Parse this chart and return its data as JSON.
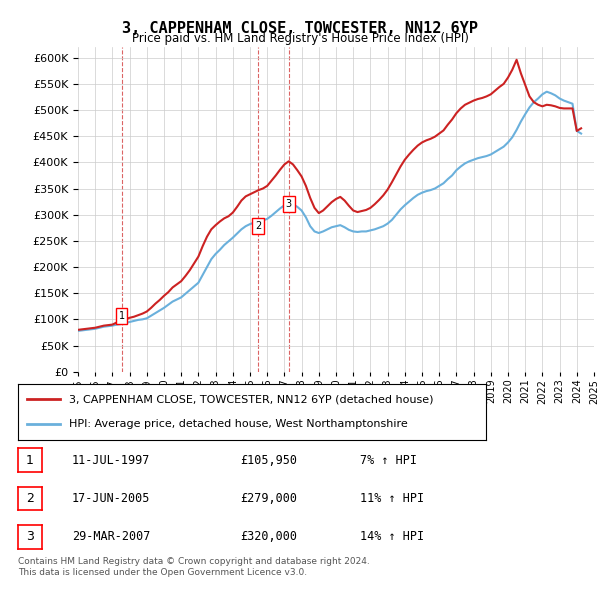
{
  "title": "3, CAPPENHAM CLOSE, TOWCESTER, NN12 6YP",
  "subtitle": "Price paid vs. HM Land Registry's House Price Index (HPI)",
  "ylim": [
    0,
    620000
  ],
  "yticks": [
    0,
    50000,
    100000,
    150000,
    200000,
    250000,
    300000,
    350000,
    400000,
    450000,
    500000,
    550000,
    600000
  ],
  "legend_line1": "3, CAPPENHAM CLOSE, TOWCESTER, NN12 6YP (detached house)",
  "legend_line2": "HPI: Average price, detached house, West Northamptonshire",
  "transactions": [
    {
      "num": 1,
      "date": "11-JUL-1997",
      "price": 105950,
      "pct": "7%",
      "x": 1997.53
    },
    {
      "num": 2,
      "date": "17-JUN-2005",
      "price": 279000,
      "pct": "11%",
      "x": 2005.46
    },
    {
      "num": 3,
      "date": "29-MAR-2007",
      "price": 320000,
      "pct": "14%",
      "x": 2007.24
    }
  ],
  "footnote1": "Contains HM Land Registry data © Crown copyright and database right 2024.",
  "footnote2": "This data is licensed under the Open Government Licence v3.0.",
  "hpi_color": "#6ab0dc",
  "price_color": "#cc2222",
  "vline_color": "#cc2222",
  "background_color": "#ffffff",
  "grid_color": "#cccccc",
  "hpi_data_x": [
    1995,
    1995.25,
    1995.5,
    1995.75,
    1996,
    1996.25,
    1996.5,
    1996.75,
    1997,
    1997.25,
    1997.5,
    1997.75,
    1998,
    1998.25,
    1998.5,
    1998.75,
    1999,
    1999.25,
    1999.5,
    1999.75,
    2000,
    2000.25,
    2000.5,
    2000.75,
    2001,
    2001.25,
    2001.5,
    2001.75,
    2002,
    2002.25,
    2002.5,
    2002.75,
    2003,
    2003.25,
    2003.5,
    2003.75,
    2004,
    2004.25,
    2004.5,
    2004.75,
    2005,
    2005.25,
    2005.5,
    2005.75,
    2006,
    2006.25,
    2006.5,
    2006.75,
    2007,
    2007.25,
    2007.5,
    2007.75,
    2008,
    2008.25,
    2008.5,
    2008.75,
    2009,
    2009.25,
    2009.5,
    2009.75,
    2010,
    2010.25,
    2010.5,
    2010.75,
    2011,
    2011.25,
    2011.5,
    2011.75,
    2012,
    2012.25,
    2012.5,
    2012.75,
    2013,
    2013.25,
    2013.5,
    2013.75,
    2014,
    2014.25,
    2014.5,
    2014.75,
    2015,
    2015.25,
    2015.5,
    2015.75,
    2016,
    2016.25,
    2016.5,
    2016.75,
    2017,
    2017.25,
    2017.5,
    2017.75,
    2018,
    2018.25,
    2018.5,
    2018.75,
    2019,
    2019.25,
    2019.5,
    2019.75,
    2020,
    2020.25,
    2020.5,
    2020.75,
    2021,
    2021.25,
    2021.5,
    2021.75,
    2022,
    2022.25,
    2022.5,
    2022.75,
    2023,
    2023.25,
    2023.5,
    2023.75,
    2024,
    2024.25
  ],
  "hpi_data_y": [
    78000,
    79000,
    80000,
    81000,
    82000,
    84000,
    86000,
    87000,
    88000,
    90000,
    91000,
    93000,
    95000,
    97000,
    99000,
    100000,
    102000,
    107000,
    112000,
    117000,
    122000,
    128000,
    134000,
    138000,
    142000,
    149000,
    156000,
    163000,
    170000,
    185000,
    200000,
    215000,
    225000,
    233000,
    242000,
    249000,
    256000,
    264000,
    272000,
    278000,
    282000,
    285000,
    287000,
    289000,
    292000,
    298000,
    305000,
    312000,
    318000,
    322000,
    320000,
    315000,
    308000,
    295000,
    278000,
    268000,
    265000,
    268000,
    272000,
    276000,
    278000,
    280000,
    276000,
    271000,
    268000,
    267000,
    268000,
    268000,
    270000,
    272000,
    275000,
    278000,
    283000,
    290000,
    300000,
    310000,
    318000,
    325000,
    332000,
    338000,
    342000,
    345000,
    347000,
    350000,
    355000,
    360000,
    368000,
    375000,
    385000,
    392000,
    398000,
    402000,
    405000,
    408000,
    410000,
    412000,
    415000,
    420000,
    425000,
    430000,
    438000,
    448000,
    462000,
    478000,
    492000,
    505000,
    515000,
    522000,
    530000,
    535000,
    532000,
    528000,
    522000,
    518000,
    515000,
    512000,
    460000,
    455000
  ],
  "price_data_x": [
    1995,
    1995.25,
    1995.5,
    1995.75,
    1996,
    1996.25,
    1996.5,
    1996.75,
    1997,
    1997.25,
    1997.5,
    1997.75,
    1998,
    1998.25,
    1998.5,
    1998.75,
    1999,
    1999.25,
    1999.5,
    1999.75,
    2000,
    2000.25,
    2000.5,
    2000.75,
    2001,
    2001.25,
    2001.5,
    2001.75,
    2002,
    2002.25,
    2002.5,
    2002.75,
    2003,
    2003.25,
    2003.5,
    2003.75,
    2004,
    2004.25,
    2004.5,
    2004.75,
    2005,
    2005.25,
    2005.5,
    2005.75,
    2006,
    2006.25,
    2006.5,
    2006.75,
    2007,
    2007.25,
    2007.5,
    2007.75,
    2008,
    2008.25,
    2008.5,
    2008.75,
    2009,
    2009.25,
    2009.5,
    2009.75,
    2010,
    2010.25,
    2010.5,
    2010.75,
    2011,
    2011.25,
    2011.5,
    2011.75,
    2012,
    2012.25,
    2012.5,
    2012.75,
    2013,
    2013.25,
    2013.5,
    2013.75,
    2014,
    2014.25,
    2014.5,
    2014.75,
    2015,
    2015.25,
    2015.5,
    2015.75,
    2016,
    2016.25,
    2016.5,
    2016.75,
    2017,
    2017.25,
    2017.5,
    2017.75,
    2018,
    2018.25,
    2018.5,
    2018.75,
    2019,
    2019.25,
    2019.5,
    2019.75,
    2020,
    2020.25,
    2020.5,
    2020.75,
    2021,
    2021.25,
    2021.5,
    2021.75,
    2022,
    2022.25,
    2022.5,
    2022.75,
    2023,
    2023.25,
    2023.5,
    2023.75,
    2024,
    2024.25
  ],
  "price_data_y": [
    80000,
    81000,
    82000,
    83000,
    84000,
    86000,
    88000,
    89000,
    90000,
    94000,
    97000,
    100000,
    103000,
    105000,
    108000,
    111000,
    115000,
    122000,
    130000,
    137000,
    145000,
    152000,
    161000,
    167000,
    173000,
    183000,
    194000,
    207000,
    220000,
    240000,
    258000,
    272000,
    280000,
    287000,
    293000,
    297000,
    304000,
    315000,
    327000,
    335000,
    339000,
    343000,
    347000,
    350000,
    355000,
    365000,
    375000,
    386000,
    396000,
    402000,
    396000,
    385000,
    373000,
    355000,
    332000,
    313000,
    303000,
    308000,
    316000,
    324000,
    330000,
    334000,
    327000,
    317000,
    308000,
    305000,
    307000,
    309000,
    313000,
    320000,
    328000,
    337000,
    348000,
    362000,
    377000,
    392000,
    405000,
    415000,
    424000,
    432000,
    438000,
    442000,
    445000,
    449000,
    455000,
    461000,
    472000,
    482000,
    494000,
    503000,
    510000,
    514000,
    518000,
    521000,
    523000,
    526000,
    530000,
    537000,
    544000,
    550000,
    562000,
    577000,
    596000,
    570000,
    548000,
    526000,
    515000,
    510000,
    507000,
    510000,
    509000,
    507000,
    504000,
    503000,
    503000,
    503000,
    460000,
    465000
  ]
}
